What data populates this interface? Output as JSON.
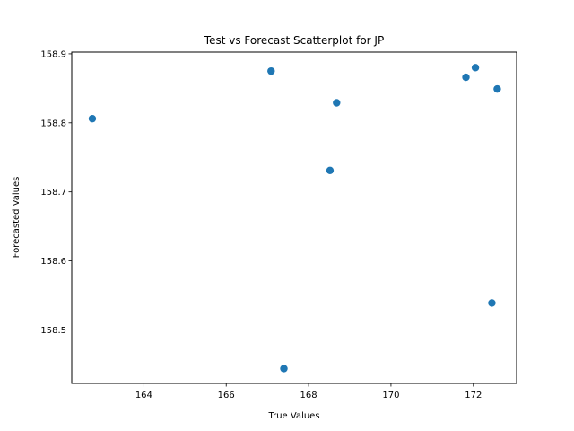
{
  "chart_data": {
    "type": "scatter",
    "title": "Test vs Forecast Scatterplot for JP",
    "xlabel": "True Values",
    "ylabel": "Forecasted Values",
    "xlim": [
      162.25,
      173.05
    ],
    "ylim": [
      158.4225,
      158.9025
    ],
    "xticks": [
      164,
      166,
      168,
      170,
      172
    ],
    "yticks": [
      158.5,
      158.6,
      158.7,
      158.8,
      158.9
    ],
    "grid": false,
    "series": [
      {
        "color": "#1f77b4",
        "points": [
          {
            "x": 162.75,
            "y": 158.806
          },
          {
            "x": 167.09,
            "y": 158.875
          },
          {
            "x": 167.4,
            "y": 158.444
          },
          {
            "x": 168.52,
            "y": 158.731
          },
          {
            "x": 168.68,
            "y": 158.829
          },
          {
            "x": 171.82,
            "y": 158.866
          },
          {
            "x": 172.05,
            "y": 158.88
          },
          {
            "x": 172.45,
            "y": 158.539
          },
          {
            "x": 172.58,
            "y": 158.849
          }
        ]
      }
    ]
  }
}
